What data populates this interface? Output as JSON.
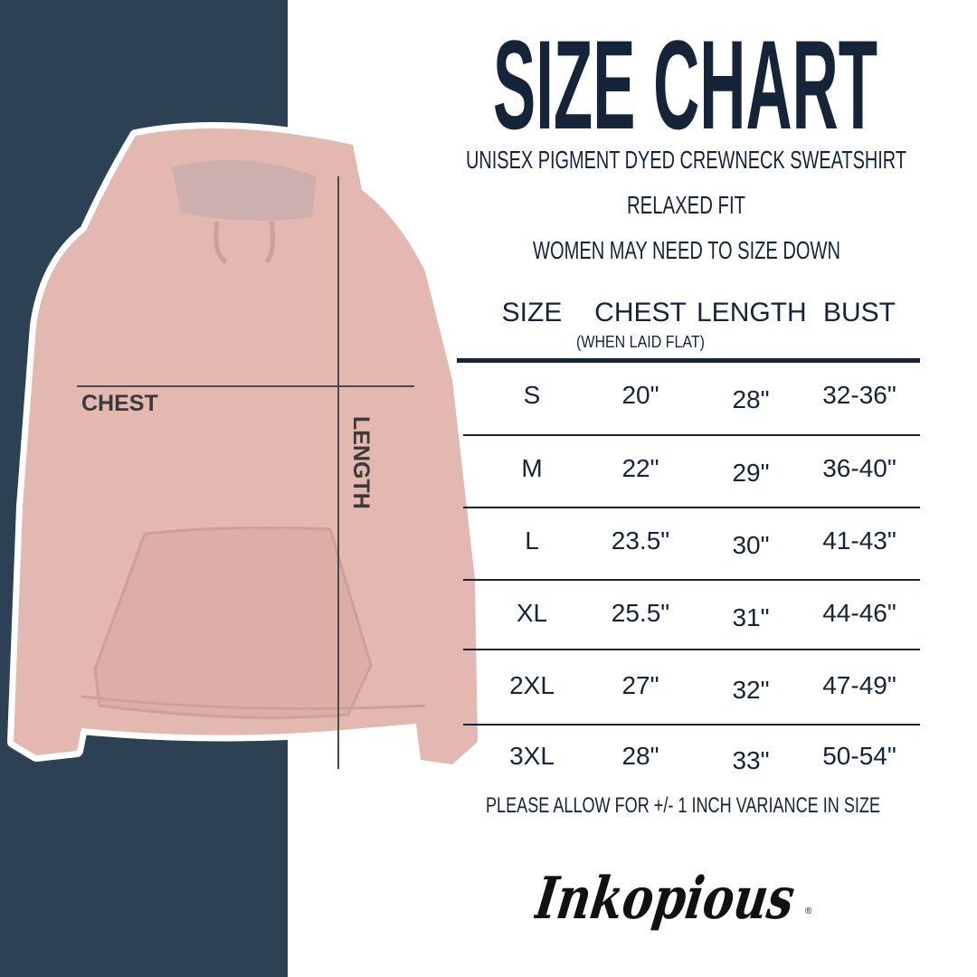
{
  "title": "SIZE CHART",
  "subtitles": [
    "UNISEX PIGMENT DYED CREWNECK SWEATSHIRT",
    "RELAXED FIT",
    "WOMEN MAY NEED TO SIZE DOWN"
  ],
  "table": {
    "headers": [
      "SIZE",
      "CHEST",
      "LENGTH",
      "BUST"
    ],
    "chest_note": "(WHEN LAID FLAT)",
    "rows": [
      [
        "S",
        "20\"",
        "28\"",
        "32-36\""
      ],
      [
        "M",
        "22\"",
        "29\"",
        "36-40\""
      ],
      [
        "L",
        "23.5\"",
        "30\"",
        "41-43\""
      ],
      [
        "XL",
        "25.5\"",
        "31\"",
        "44-46\""
      ],
      [
        "2XL",
        "27\"",
        "32\"",
        "47-49\""
      ],
      [
        "3XL",
        "28\"",
        "33\"",
        "50-54\""
      ]
    ]
  },
  "footnote": "PLEASE ALLOW FOR +/- 1 INCH VARIANCE IN SIZE",
  "diagram": {
    "chest_label": "CHEST",
    "length_label": "LENGTH"
  },
  "logo_text": "Inkopious",
  "colors": {
    "panel": "#2c4154",
    "text": "#16243a",
    "garment": "#e2b8b1"
  }
}
